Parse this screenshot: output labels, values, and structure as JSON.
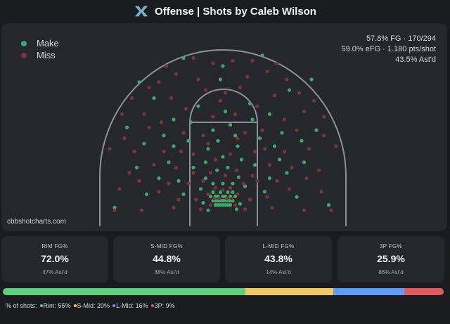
{
  "header": {
    "title": "Offense | Shots by Caleb Wilson"
  },
  "legend": {
    "make_label": "Make",
    "miss_label": "Miss",
    "make_color": "#3ea86a",
    "miss_color": "#7a3636"
  },
  "stats": {
    "line1": "57.8% FG · 170/294",
    "line2": "59.0% eFG · 1.180 pts/shot",
    "line3": "43.5% Ast'd"
  },
  "watermark": "cbbshotcharts.com",
  "cards": [
    {
      "label": "RIM FG%",
      "value": "72.0%",
      "sub": "47% Ast'd"
    },
    {
      "label": "S-MID FG%",
      "value": "44.8%",
      "sub": "38% Ast'd"
    },
    {
      "label": "L-MID FG%",
      "value": "43.8%",
      "sub": "14% Ast'd"
    },
    {
      "label": "3P FG%",
      "value": "25.9%",
      "sub": "86% Ast'd"
    }
  ],
  "distribution": {
    "label": "% of shots:",
    "items": [
      {
        "name": "Rim",
        "text": "Rim: 55%",
        "value": 55,
        "color": "#5fd07a"
      },
      {
        "name": "S-Mid",
        "text": "S-Mid: 20%",
        "value": 20,
        "color": "#f5c96a"
      },
      {
        "name": "L-Mid",
        "text": "L-Mid: 16%",
        "value": 16,
        "color": "#5f9cf5"
      },
      {
        "name": "3P",
        "text": "3P: 9%",
        "value": 9,
        "color": "#e05c5c"
      }
    ]
  },
  "chart_data": {
    "type": "scatter",
    "title": "Offense | Shots by Caleb Wilson",
    "x_units": "feet from basket (left/right)",
    "y_units": "feet from baseline",
    "xlim": [
      -25,
      25
    ],
    "ylim": [
      0,
      35
    ],
    "series": [
      {
        "name": "Make",
        "color": "#3ea86a",
        "points": [
          [
            -1.5,
            4.0
          ],
          [
            -1.0,
            4.0
          ],
          [
            -0.5,
            4.0
          ],
          [
            0.0,
            4.0
          ],
          [
            0.5,
            4.0
          ],
          [
            1.0,
            4.0
          ],
          [
            1.5,
            4.0
          ],
          [
            -2.0,
            4.8
          ],
          [
            -1.5,
            4.8
          ],
          [
            -1.0,
            4.8
          ],
          [
            -0.5,
            4.8
          ],
          [
            0.0,
            4.8
          ],
          [
            0.5,
            4.8
          ],
          [
            1.0,
            4.8
          ],
          [
            1.5,
            4.8
          ],
          [
            2.0,
            4.8
          ],
          [
            -2.5,
            5.6
          ],
          [
            -1.5,
            5.6
          ],
          [
            -1.0,
            5.6
          ],
          [
            0.0,
            5.6
          ],
          [
            0.5,
            5.6
          ],
          [
            1.5,
            5.6
          ],
          [
            2.5,
            5.6
          ],
          [
            -2.0,
            6.4
          ],
          [
            -0.5,
            6.4
          ],
          [
            1.0,
            6.4
          ],
          [
            2.0,
            6.4
          ],
          [
            -4.0,
            4.4
          ],
          [
            3.5,
            4.2
          ],
          [
            -3.0,
            3.0
          ],
          [
            2.8,
            3.2
          ],
          [
            -2.0,
            8.0
          ],
          [
            0.0,
            8.0
          ],
          [
            2.0,
            8.0
          ],
          [
            -3.5,
            9.0
          ],
          [
            3.2,
            9.2
          ],
          [
            -1.2,
            10.5
          ],
          [
            1.0,
            11.0
          ],
          [
            -4.5,
            7.0
          ],
          [
            4.5,
            7.5
          ],
          [
            -8.0,
            6.0
          ],
          [
            8.5,
            6.5
          ],
          [
            -9.0,
            8.5
          ],
          [
            9.5,
            9.0
          ],
          [
            -6.0,
            11.0
          ],
          [
            6.5,
            11.5
          ],
          [
            0.0,
            13.0
          ],
          [
            -3.0,
            14.5
          ],
          [
            3.0,
            15.0
          ],
          [
            -11.0,
            12.0
          ],
          [
            11.5,
            12.5
          ],
          [
            -7.0,
            16.0
          ],
          [
            7.5,
            16.5
          ],
          [
            -2.0,
            18.0
          ],
          [
            1.5,
            19.0
          ],
          [
            -13.0,
            9.0
          ],
          [
            13.0,
            10.0
          ],
          [
            -10.0,
            20.0
          ],
          [
            9.5,
            21.0
          ],
          [
            0.5,
            21.5
          ],
          [
            -5.0,
            22.5
          ],
          [
            5.5,
            23.0
          ],
          [
            -15.5,
            6.0
          ],
          [
            15.0,
            5.5
          ],
          [
            -17.5,
            11.0
          ],
          [
            16.5,
            12.0
          ],
          [
            -22.0,
            3.5
          ],
          [
            21.5,
            4.0
          ],
          [
            -14.0,
            24.0
          ],
          [
            13.5,
            25.5
          ],
          [
            -0.5,
            27.5
          ],
          [
            -17.0,
            27.0
          ],
          [
            18.0,
            27.5
          ],
          [
            -8.0,
            31.5
          ],
          [
            8.0,
            32.0
          ],
          [
            -19.5,
            18.5
          ],
          [
            19.0,
            18.0
          ],
          [
            -12.0,
            17.0
          ],
          [
            12.0,
            17.5
          ],
          [
            -6.5,
            19.5
          ],
          [
            6.0,
            20.0
          ],
          [
            -3.5,
            12.0
          ],
          [
            3.8,
            12.5
          ],
          [
            -1.0,
            16.0
          ],
          [
            2.5,
            17.0
          ],
          [
            -10.0,
            15.0
          ],
          [
            10.5,
            15.0
          ],
          [
            -16.0,
            15.5
          ],
          [
            16.0,
            16.0
          ],
          [
            0.0,
            30.0
          ]
        ]
      },
      {
        "name": "Miss",
        "color": "#7a3636",
        "points": [
          [
            -1.8,
            5.2
          ],
          [
            1.8,
            5.2
          ],
          [
            -0.8,
            5.2
          ],
          [
            0.8,
            5.2
          ],
          [
            -2.5,
            4.0
          ],
          [
            2.5,
            4.0
          ],
          [
            -3.0,
            6.0
          ],
          [
            3.0,
            6.0
          ],
          [
            -1.5,
            7.2
          ],
          [
            1.5,
            7.2
          ],
          [
            0.0,
            6.8
          ],
          [
            -4.0,
            8.5
          ],
          [
            4.2,
            8.0
          ],
          [
            -2.5,
            10.0
          ],
          [
            2.8,
            10.5
          ],
          [
            0.5,
            9.5
          ],
          [
            -5.5,
            5.0
          ],
          [
            5.5,
            5.0
          ],
          [
            -7.0,
            8.0
          ],
          [
            7.0,
            8.5
          ],
          [
            -9.0,
            5.0
          ],
          [
            9.0,
            5.5
          ],
          [
            -11.0,
            8.0
          ],
          [
            11.0,
            8.5
          ],
          [
            -6.0,
            13.5
          ],
          [
            6.5,
            14.0
          ],
          [
            -1.5,
            12.5
          ],
          [
            1.5,
            13.5
          ],
          [
            -8.5,
            14.0
          ],
          [
            8.5,
            14.5
          ],
          [
            -12.0,
            14.0
          ],
          [
            12.5,
            14.0
          ],
          [
            -14.0,
            11.5
          ],
          [
            14.0,
            11.0
          ],
          [
            -4.0,
            17.0
          ],
          [
            4.5,
            17.5
          ],
          [
            -2.0,
            20.5
          ],
          [
            2.5,
            21.0
          ],
          [
            -7.5,
            22.0
          ],
          [
            7.0,
            22.5
          ],
          [
            -10.5,
            24.0
          ],
          [
            10.5,
            24.5
          ],
          [
            -16.0,
            21.0
          ],
          [
            16.5,
            21.5
          ],
          [
            -19.0,
            10.0
          ],
          [
            19.5,
            10.5
          ],
          [
            -21.0,
            7.0
          ],
          [
            20.0,
            6.5
          ],
          [
            -22.0,
            3.0
          ],
          [
            22.0,
            3.0
          ],
          [
            -18.0,
            14.0
          ],
          [
            17.5,
            14.5
          ],
          [
            -20.0,
            16.5
          ],
          [
            20.5,
            17.0
          ],
          [
            -13.0,
            27.0
          ],
          [
            13.0,
            27.5
          ],
          [
            -15.0,
            26.0
          ],
          [
            15.5,
            25.0
          ],
          [
            -11.5,
            30.0
          ],
          [
            11.0,
            30.5
          ],
          [
            -6.0,
            31.5
          ],
          [
            6.0,
            31.0
          ],
          [
            -2.0,
            30.5
          ],
          [
            2.0,
            31.0
          ],
          [
            -9.5,
            28.5
          ],
          [
            9.0,
            29.0
          ],
          [
            -18.5,
            24.0
          ],
          [
            18.5,
            23.5
          ],
          [
            -23.0,
            14.5
          ],
          [
            23.0,
            15.0
          ],
          [
            -3.5,
            25.5
          ],
          [
            3.5,
            26.0
          ],
          [
            -0.5,
            23.5
          ],
          [
            0.5,
            25.0
          ],
          [
            -5.0,
            27.5
          ],
          [
            5.0,
            28.0
          ],
          [
            -8.0,
            17.5
          ],
          [
            8.0,
            18.0
          ],
          [
            -12.5,
            19.5
          ],
          [
            12.5,
            20.0
          ],
          [
            -15.0,
            18.5
          ],
          [
            15.0,
            18.0
          ],
          [
            -6.0,
            10.0
          ],
          [
            6.0,
            9.5
          ],
          [
            -3.0,
            15.5
          ],
          [
            3.0,
            16.5
          ],
          [
            -9.5,
            11.0
          ],
          [
            9.5,
            11.5
          ],
          [
            -13.0,
            6.5
          ],
          [
            13.5,
            7.0
          ],
          [
            -17.0,
            8.5
          ],
          [
            17.0,
            9.0
          ],
          [
            -10.0,
            3.5
          ],
          [
            10.0,
            3.5
          ],
          [
            -20.5,
            21.0
          ],
          [
            20.5,
            20.5
          ],
          [
            -16.5,
            3.0
          ],
          [
            16.5,
            3.0
          ],
          [
            -4.5,
            3.2
          ],
          [
            4.5,
            3.2
          ]
        ]
      }
    ]
  }
}
